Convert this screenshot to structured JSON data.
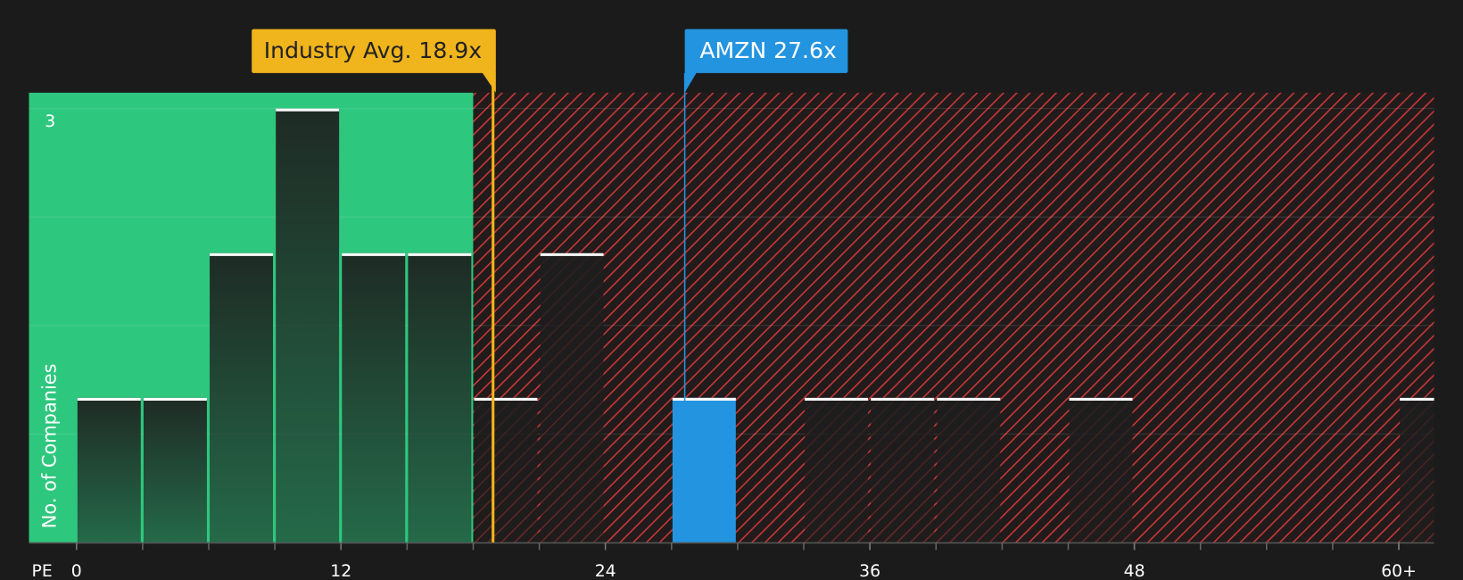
{
  "chart_data": {
    "type": "histogram",
    "x_label": "PE",
    "y_label": "No. of Companies",
    "bins": [
      0,
      3,
      6,
      9,
      12,
      15,
      18,
      21,
      24,
      27,
      30,
      33,
      36,
      39,
      42,
      45,
      48,
      51,
      54,
      57,
      60,
      63
    ],
    "values": [
      1,
      1,
      2,
      3,
      2,
      2,
      1,
      2,
      0,
      1,
      0,
      1,
      1,
      1,
      0,
      1,
      0,
      0,
      0,
      0,
      1
    ],
    "highlight": {
      "index": 9,
      "color": "#2394e0"
    },
    "xlim": [
      -2.16,
      61.6
    ],
    "ylim": [
      0,
      3.11
    ],
    "xticks": [
      0,
      12,
      24,
      36,
      48,
      {
        "value": 60,
        "label": "60+"
      }
    ],
    "yticks": [
      3
    ],
    "ygrid": [
      0.75,
      1.5,
      2.25,
      3
    ],
    "zones": {
      "good_max": 18,
      "good_color": "#2ec77e",
      "bad_color": "#c8383a"
    },
    "annotations": [
      {
        "label": "Industry Avg. 18.9x",
        "value": 18.9,
        "color": "#f0b41c",
        "text_color": "#222222",
        "side": "left"
      },
      {
        "label": "AMZN 27.6x",
        "value": 27.6,
        "color": "#2394e0",
        "text_color": "#ffffff",
        "side": "right"
      }
    ]
  }
}
